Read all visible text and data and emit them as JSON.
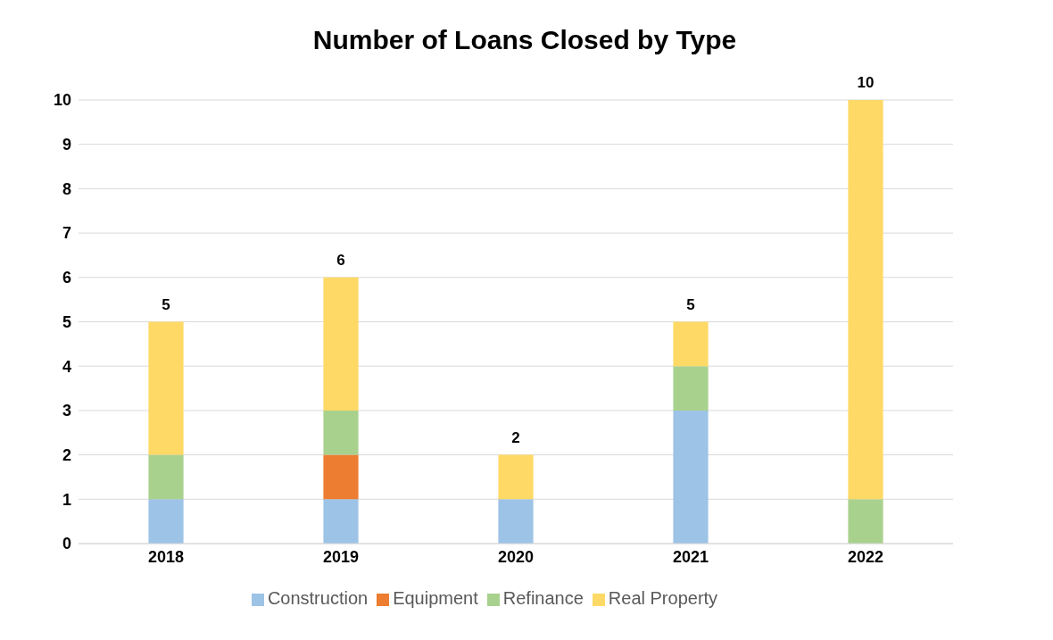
{
  "chart_data": {
    "type": "bar",
    "title": "Number of Loans Closed by Type",
    "categories": [
      "2018",
      "2019",
      "2020",
      "2021",
      "2022"
    ],
    "stacked": true,
    "series": [
      {
        "name": "Construction",
        "color": "#9dc3e6",
        "values": [
          1,
          1,
          1,
          3,
          0
        ]
      },
      {
        "name": "Equipment",
        "color": "#ed7d31",
        "values": [
          0,
          1,
          0,
          0,
          0
        ]
      },
      {
        "name": "Refinance",
        "color": "#a9d18e",
        "values": [
          1,
          1,
          0,
          1,
          1
        ]
      },
      {
        "name": "Real Property",
        "color": "#ffd966",
        "values": [
          3,
          3,
          1,
          1,
          9
        ]
      }
    ],
    "totals": [
      "5",
      "6",
      "2",
      "5",
      "10"
    ],
    "ylim": [
      0,
      10
    ],
    "yticks": [
      0,
      1,
      2,
      3,
      4,
      5,
      6,
      7,
      8,
      9,
      10
    ],
    "grid": "y",
    "legend": "bottom"
  }
}
